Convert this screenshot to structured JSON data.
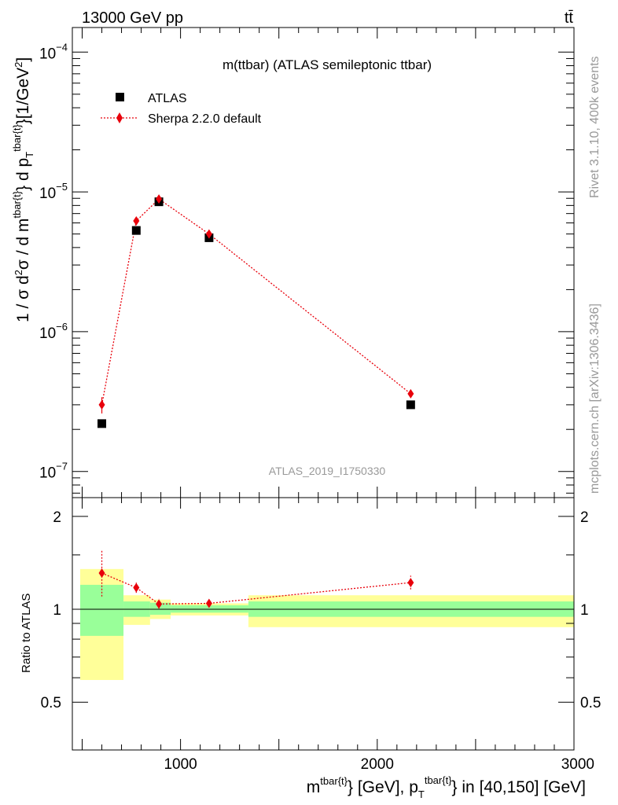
{
  "header": {
    "energy": "13000 GeV pp",
    "process": "tt̄"
  },
  "side": {
    "rivet": "Rivet 3.1.10,  400k events",
    "mcplots": "mcplots.cern.ch [arXiv:1306.3436]"
  },
  "chart_data": [
    {
      "type": "scatter",
      "title": "m(ttbar) (ATLAS semileptonic ttbar)",
      "watermark": "ATLAS_2019_I1750330",
      "ylabel": {
        "prefix": "1 / σ d",
        "sup1": "2",
        "mid1": "σ / d m",
        "sup2": "tbar{t}",
        "mid2": "} d p",
        "sub": "T",
        "sup3": "tbar{t}",
        "mid3": "}[1/GeV",
        "sup4": "2",
        "end": "]"
      },
      "y_scale": "log",
      "xlim": [
        450,
        3000
      ],
      "ylim": [
        6.5e-08,
        0.00015
      ],
      "y_ticks": [
        {
          "value": 1e-07,
          "base": "10",
          "exp": "−7"
        },
        {
          "value": 1e-06,
          "base": "10",
          "exp": "−6"
        },
        {
          "value": 1e-05,
          "base": "10",
          "exp": "−5"
        },
        {
          "value": 0.0001,
          "base": "10",
          "exp": "−4"
        }
      ],
      "legend_position": "top-left",
      "series": [
        {
          "name": "ATLAS",
          "marker": "square",
          "color": "#000000",
          "x": [
            600,
            775,
            890,
            1145,
            2170
          ],
          "y": [
            2.2e-07,
            5.3e-06,
            8.5e-06,
            4.7e-06,
            3e-07
          ]
        },
        {
          "name": "Sherpa 2.2.0 default",
          "marker": "diamond",
          "color": "#e8000b",
          "line": "dotted",
          "x": [
            600,
            775,
            890,
            1145,
            2170
          ],
          "y": [
            3e-07,
            6.2e-06,
            8.9e-06,
            5e-06,
            3.6e-07
          ],
          "yerr_low": [
            2.6e-07,
            5.9e-06,
            8.6e-06,
            4.85e-06,
            3.4e-07
          ],
          "yerr_high": [
            3.4e-07,
            6.5e-06,
            9.2e-06,
            5.15e-06,
            3.8e-07
          ]
        }
      ]
    },
    {
      "type": "scatter",
      "ylabel": "Ratio to ATLAS",
      "xlabel": {
        "m": "m",
        "sup1": "tbar{t}",
        "mid": "} [GeV], p",
        "sub": "T",
        "sup2": "tbar{t}",
        "end": "} in [40,150] [GeV]"
      },
      "xlim": [
        450,
        3000
      ],
      "ylim": [
        0.35,
        2.3
      ],
      "y_ticks": [
        0.5,
        1,
        2
      ],
      "x_ticks": [
        {
          "value": 1000,
          "label": "1000"
        },
        {
          "value": 2000,
          "label": "2000"
        },
        {
          "value": 3000,
          "label": "3000"
        }
      ],
      "reference_line": 1,
      "bands": [
        {
          "x0": 490,
          "x1": 710,
          "green": [
            0.82,
            1.2
          ],
          "yellow": [
            0.59,
            1.35
          ]
        },
        {
          "x0": 710,
          "x1": 845,
          "green": [
            0.945,
            1.06
          ],
          "yellow": [
            0.89,
            1.11
          ]
        },
        {
          "x0": 845,
          "x1": 950,
          "green": [
            0.96,
            1.05
          ],
          "yellow": [
            0.93,
            1.075
          ]
        },
        {
          "x0": 950,
          "x1": 1345,
          "green": [
            0.975,
            1.03
          ],
          "yellow": [
            0.955,
            1.045
          ]
        },
        {
          "x0": 1345,
          "x1": 3000,
          "green": [
            0.945,
            1.06
          ],
          "yellow": [
            0.875,
            1.11
          ]
        }
      ],
      "series": [
        {
          "name": "Sherpa 2.2.0 default",
          "color": "#e8000b",
          "x": [
            600,
            775,
            890,
            1145,
            2170
          ],
          "y": [
            1.31,
            1.175,
            1.04,
            1.045,
            1.22
          ],
          "yerr_low": [
            1.1,
            1.13,
            1.005,
            1.02,
            1.16
          ],
          "yerr_high": [
            1.55,
            1.22,
            1.08,
            1.07,
            1.285
          ]
        }
      ]
    }
  ]
}
